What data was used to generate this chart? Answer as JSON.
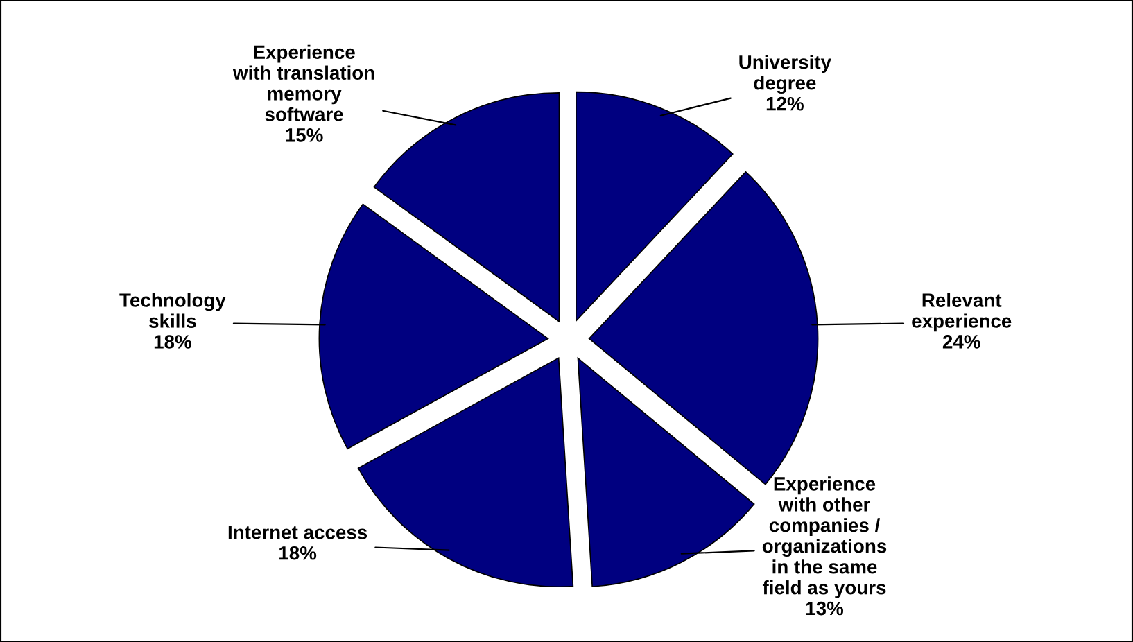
{
  "chart_data": {
    "type": "pie",
    "categories": [
      "University\ndegree",
      "Relevant\nexperience",
      "Experience\nwith other\ncompanies /\norganizations\nin the same\nfield as yours",
      "Internet access",
      "Technology\nskills",
      "Experience\nwith translation\nmemory\nsoftware"
    ],
    "values": [
      12,
      24,
      13,
      18,
      18,
      15
    ],
    "value_labels": [
      "12%",
      "24%",
      "13%",
      "18%",
      "18%",
      "15%"
    ],
    "colors": [
      "#000080",
      "#000080",
      "#000080",
      "#000080",
      "#000080",
      "#000080"
    ],
    "legend": false
  }
}
